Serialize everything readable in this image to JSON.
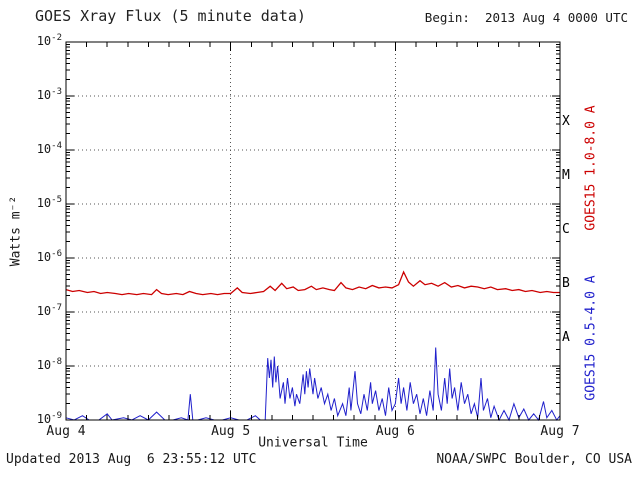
{
  "colors": {
    "long_series": "#cc0000",
    "short_series": "#2020cc",
    "axis": "#000000",
    "grid": "#555555",
    "text": "#1a1a1a"
  },
  "chart_data": {
    "type": "line",
    "title": "GOES Xray Flux (5 minute data)",
    "begin_label": "Begin:  2013 Aug 4 0000 UTC",
    "xlabel": "Universal Time",
    "ylabel": "Watts m⁻²",
    "updated": "Updated 2013 Aug  6 23:55:12 UTC",
    "credit": "NOAA/SWPC Boulder, CO USA",
    "x_range_days": [
      0,
      3
    ],
    "y_exp_range": [
      -2,
      -9
    ],
    "y_tick_exponents": [
      -2,
      -3,
      -4,
      -5,
      -6,
      -7,
      -8,
      -9
    ],
    "x_minor_hours": 3,
    "x_ticks": [
      {
        "day": 0,
        "label": "Aug 4"
      },
      {
        "day": 1,
        "label": "Aug 5"
      },
      {
        "day": 2,
        "label": "Aug 6"
      },
      {
        "day": 3,
        "label": "Aug 7"
      }
    ],
    "flare_classes": [
      {
        "label": "X",
        "exp": -3.5
      },
      {
        "label": "M",
        "exp": -4.5
      },
      {
        "label": "C",
        "exp": -5.5
      },
      {
        "label": "B",
        "exp": -6.5
      },
      {
        "label": "A",
        "exp": -7.5
      }
    ],
    "series": [
      {
        "name": "GOES15 1.0-8.0 A",
        "color": "#cc0000",
        "width": 1.3,
        "points": [
          [
            0.0,
            2.6e-07
          ],
          [
            0.04,
            2.4e-07
          ],
          [
            0.08,
            2.5e-07
          ],
          [
            0.13,
            2.3e-07
          ],
          [
            0.17,
            2.4e-07
          ],
          [
            0.21,
            2.2e-07
          ],
          [
            0.25,
            2.3e-07
          ],
          [
            0.3,
            2.2e-07
          ],
          [
            0.34,
            2.1e-07
          ],
          [
            0.38,
            2.2e-07
          ],
          [
            0.43,
            2.1e-07
          ],
          [
            0.47,
            2.2e-07
          ],
          [
            0.52,
            2.1e-07
          ],
          [
            0.55,
            2.6e-07
          ],
          [
            0.58,
            2.2e-07
          ],
          [
            0.62,
            2.1e-07
          ],
          [
            0.67,
            2.2e-07
          ],
          [
            0.71,
            2.1e-07
          ],
          [
            0.75,
            2.4e-07
          ],
          [
            0.79,
            2.2e-07
          ],
          [
            0.83,
            2.1e-07
          ],
          [
            0.88,
            2.2e-07
          ],
          [
            0.92,
            2.1e-07
          ],
          [
            0.96,
            2.2e-07
          ],
          [
            1.0,
            2.2e-07
          ],
          [
            1.04,
            2.8e-07
          ],
          [
            1.07,
            2.3e-07
          ],
          [
            1.12,
            2.2e-07
          ],
          [
            1.16,
            2.3e-07
          ],
          [
            1.2,
            2.4e-07
          ],
          [
            1.24,
            3e-07
          ],
          [
            1.27,
            2.5e-07
          ],
          [
            1.31,
            3.4e-07
          ],
          [
            1.34,
            2.7e-07
          ],
          [
            1.38,
            2.9e-07
          ],
          [
            1.41,
            2.5e-07
          ],
          [
            1.45,
            2.6e-07
          ],
          [
            1.49,
            3e-07
          ],
          [
            1.52,
            2.6e-07
          ],
          [
            1.56,
            2.8e-07
          ],
          [
            1.6,
            2.6e-07
          ],
          [
            1.63,
            2.5e-07
          ],
          [
            1.67,
            3.5e-07
          ],
          [
            1.7,
            2.8e-07
          ],
          [
            1.74,
            2.6e-07
          ],
          [
            1.78,
            2.9e-07
          ],
          [
            1.82,
            2.7e-07
          ],
          [
            1.86,
            3.1e-07
          ],
          [
            1.9,
            2.8e-07
          ],
          [
            1.94,
            2.9e-07
          ],
          [
            1.98,
            2.8e-07
          ],
          [
            2.02,
            3.2e-07
          ],
          [
            2.05,
            5.5e-07
          ],
          [
            2.08,
            3.6e-07
          ],
          [
            2.11,
            3e-07
          ],
          [
            2.15,
            3.8e-07
          ],
          [
            2.18,
            3.2e-07
          ],
          [
            2.22,
            3.4e-07
          ],
          [
            2.26,
            3e-07
          ],
          [
            2.3,
            3.5e-07
          ],
          [
            2.34,
            2.9e-07
          ],
          [
            2.38,
            3.1e-07
          ],
          [
            2.42,
            2.8e-07
          ],
          [
            2.46,
            3e-07
          ],
          [
            2.5,
            2.9e-07
          ],
          [
            2.54,
            2.7e-07
          ],
          [
            2.58,
            2.9e-07
          ],
          [
            2.62,
            2.6e-07
          ],
          [
            2.67,
            2.7e-07
          ],
          [
            2.71,
            2.5e-07
          ],
          [
            2.75,
            2.6e-07
          ],
          [
            2.79,
            2.4e-07
          ],
          [
            2.83,
            2.5e-07
          ],
          [
            2.88,
            2.3e-07
          ],
          [
            2.92,
            2.4e-07
          ],
          [
            2.96,
            2.3e-07
          ],
          [
            3.0,
            2.3e-07
          ]
        ]
      },
      {
        "name": "GOES15 0.5-4.0 A",
        "color": "#2020cc",
        "width": 1,
        "points": [
          [
            0.0,
            1.1e-09
          ],
          [
            0.05,
            9e-10
          ],
          [
            0.1,
            1.2e-09
          ],
          [
            0.14,
            9e-10
          ],
          [
            0.2,
            1e-09
          ],
          [
            0.25,
            1.3e-09
          ],
          [
            0.28,
            9e-10
          ],
          [
            0.35,
            1.1e-09
          ],
          [
            0.4,
            9e-10
          ],
          [
            0.45,
            1.2e-09
          ],
          [
            0.5,
            1e-09
          ],
          [
            0.55,
            1.4e-09
          ],
          [
            0.6,
            1e-09
          ],
          [
            0.65,
            9e-10
          ],
          [
            0.7,
            1.1e-09
          ],
          [
            0.74,
            1e-09
          ],
          [
            0.755,
            3e-09
          ],
          [
            0.77,
            1e-09
          ],
          [
            0.8,
            9e-10
          ],
          [
            0.85,
            1.1e-09
          ],
          [
            0.9,
            9e-10
          ],
          [
            0.95,
            1e-09
          ],
          [
            1.0,
            1.1e-09
          ],
          [
            1.05,
            9e-10
          ],
          [
            1.1,
            1e-09
          ],
          [
            1.15,
            1.2e-09
          ],
          [
            1.18,
            9e-10
          ],
          [
            1.21,
            1e-09
          ],
          [
            1.225,
            1.4e-08
          ],
          [
            1.235,
            6e-09
          ],
          [
            1.245,
            1.3e-08
          ],
          [
            1.255,
            4e-09
          ],
          [
            1.265,
            1.5e-08
          ],
          [
            1.275,
            5e-09
          ],
          [
            1.285,
            1e-08
          ],
          [
            1.3,
            2.5e-09
          ],
          [
            1.32,
            5e-09
          ],
          [
            1.33,
            2e-09
          ],
          [
            1.345,
            6e-09
          ],
          [
            1.36,
            2.5e-09
          ],
          [
            1.375,
            4e-09
          ],
          [
            1.39,
            1.8e-09
          ],
          [
            1.4,
            3e-09
          ],
          [
            1.42,
            2e-09
          ],
          [
            1.44,
            7e-09
          ],
          [
            1.45,
            3e-09
          ],
          [
            1.46,
            8e-09
          ],
          [
            1.47,
            4e-09
          ],
          [
            1.48,
            9e-09
          ],
          [
            1.5,
            3e-09
          ],
          [
            1.51,
            6e-09
          ],
          [
            1.53,
            2.5e-09
          ],
          [
            1.55,
            4e-09
          ],
          [
            1.57,
            2e-09
          ],
          [
            1.59,
            3e-09
          ],
          [
            1.61,
            1.5e-09
          ],
          [
            1.63,
            2.5e-09
          ],
          [
            1.65,
            1.2e-09
          ],
          [
            1.68,
            2e-09
          ],
          [
            1.7,
            1.2e-09
          ],
          [
            1.72,
            4e-09
          ],
          [
            1.73,
            1.5e-09
          ],
          [
            1.755,
            8e-09
          ],
          [
            1.77,
            2e-09
          ],
          [
            1.79,
            1.3e-09
          ],
          [
            1.81,
            3e-09
          ],
          [
            1.83,
            1.5e-09
          ],
          [
            1.85,
            5e-09
          ],
          [
            1.86,
            2e-09
          ],
          [
            1.88,
            3.5e-09
          ],
          [
            1.9,
            1.5e-09
          ],
          [
            1.92,
            2.5e-09
          ],
          [
            1.94,
            1.2e-09
          ],
          [
            1.96,
            4e-09
          ],
          [
            1.98,
            1.5e-09
          ],
          [
            2.0,
            2e-09
          ],
          [
            2.02,
            6e-09
          ],
          [
            2.035,
            2e-09
          ],
          [
            2.05,
            4e-09
          ],
          [
            2.07,
            1.5e-09
          ],
          [
            2.09,
            5e-09
          ],
          [
            2.11,
            2e-09
          ],
          [
            2.13,
            3e-09
          ],
          [
            2.15,
            1.3e-09
          ],
          [
            2.17,
            2.5e-09
          ],
          [
            2.19,
            1.2e-09
          ],
          [
            2.21,
            3.5e-09
          ],
          [
            2.23,
            1.5e-09
          ],
          [
            2.245,
            2.2e-08
          ],
          [
            2.26,
            3e-09
          ],
          [
            2.28,
            1.5e-09
          ],
          [
            2.3,
            6e-09
          ],
          [
            2.315,
            2e-09
          ],
          [
            2.33,
            9e-09
          ],
          [
            2.345,
            2.5e-09
          ],
          [
            2.36,
            4e-09
          ],
          [
            2.38,
            1.5e-09
          ],
          [
            2.4,
            5e-09
          ],
          [
            2.42,
            2e-09
          ],
          [
            2.44,
            3e-09
          ],
          [
            2.46,
            1.3e-09
          ],
          [
            2.48,
            2e-09
          ],
          [
            2.5,
            1.1e-09
          ],
          [
            2.52,
            6e-09
          ],
          [
            2.535,
            1.5e-09
          ],
          [
            2.56,
            2.5e-09
          ],
          [
            2.58,
            1.1e-09
          ],
          [
            2.6,
            1.8e-09
          ],
          [
            2.63,
            9e-10
          ],
          [
            2.66,
            1.5e-09
          ],
          [
            2.69,
            1e-09
          ],
          [
            2.72,
            2e-09
          ],
          [
            2.75,
            1.1e-09
          ],
          [
            2.78,
            1.6e-09
          ],
          [
            2.81,
            9e-10
          ],
          [
            2.84,
            1.3e-09
          ],
          [
            2.87,
            1e-09
          ],
          [
            2.9,
            2.2e-09
          ],
          [
            2.92,
            1.1e-09
          ],
          [
            2.95,
            1.5e-09
          ],
          [
            2.98,
            1e-09
          ],
          [
            3.0,
            1.2e-09
          ]
        ]
      }
    ]
  }
}
